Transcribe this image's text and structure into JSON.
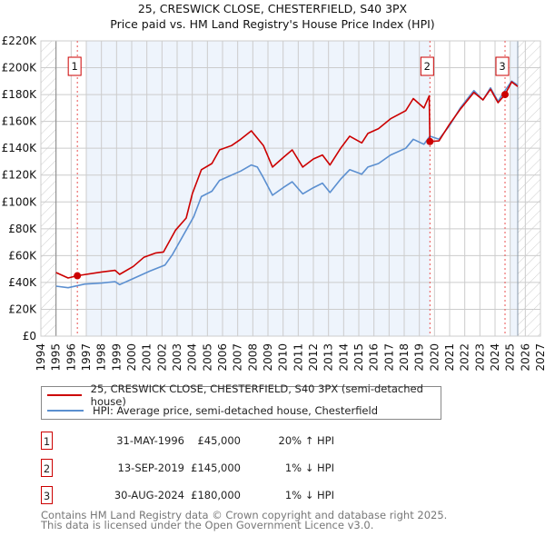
{
  "chart_data": {
    "type": "line",
    "title": "25, CRESWICK CLOSE, CHESTERFIELD, S40 3PX",
    "subtitle": "Price paid vs. HM Land Registry's House Price Index (HPI)",
    "xlim": [
      1994,
      2027
    ],
    "ylim": [
      0,
      220000
    ],
    "x_ticks": [
      "1994",
      "1995",
      "1996",
      "1997",
      "1998",
      "1999",
      "2000",
      "2001",
      "2002",
      "2003",
      "2004",
      "2005",
      "2006",
      "2007",
      "2008",
      "2009",
      "2010",
      "2011",
      "2012",
      "2013",
      "2014",
      "2015",
      "2016",
      "2017",
      "2018",
      "2019",
      "2020",
      "2021",
      "2022",
      "2023",
      "2024",
      "2025",
      "2026",
      "2027"
    ],
    "y_ticks": [
      {
        "v": 0,
        "label": "£0"
      },
      {
        "v": 20000,
        "label": "£20K"
      },
      {
        "v": 40000,
        "label": "£40K"
      },
      {
        "v": 60000,
        "label": "£60K"
      },
      {
        "v": 80000,
        "label": "£80K"
      },
      {
        "v": 100000,
        "label": "£100K"
      },
      {
        "v": 120000,
        "label": "£120K"
      },
      {
        "v": 140000,
        "label": "£140K"
      },
      {
        "v": 160000,
        "label": "£160K"
      },
      {
        "v": 180000,
        "label": "£180K"
      },
      {
        "v": 200000,
        "label": "£200K"
      },
      {
        "v": 220000,
        "label": "£220K"
      }
    ],
    "grid": true,
    "series": [
      {
        "name": "25, CRESWICK CLOSE, CHESTERFIELD, S40 3PX (semi-detached house)",
        "color": "#cc0000",
        "x": [
          1995.0,
          1995.8,
          1996.4,
          1998.0,
          1998.9,
          1999.2,
          2000.1,
          2000.8,
          2001.6,
          2002.1,
          2002.9,
          2003.6,
          2004.0,
          2004.6,
          2005.3,
          2005.8,
          2006.6,
          2007.2,
          2007.9,
          2008.7,
          2009.3,
          2010.0,
          2010.6,
          2011.3,
          2012.0,
          2012.6,
          2013.1,
          2013.8,
          2014.4,
          2015.2,
          2015.6,
          2016.3,
          2017.1,
          2018.1,
          2018.6,
          2019.3,
          2019.65,
          2019.7,
          2020.3,
          2021.0,
          2021.7,
          2022.6,
          2023.2,
          2023.7,
          2024.2,
          2024.66,
          2025.1,
          2025.5
        ],
        "y": [
          47400,
          43300,
          45000,
          47800,
          49000,
          46000,
          51900,
          58700,
          62000,
          62700,
          79000,
          88000,
          106000,
          124000,
          128600,
          138800,
          142000,
          146700,
          153000,
          142000,
          126000,
          133000,
          138800,
          126000,
          132000,
          135000,
          127500,
          140000,
          149000,
          144000,
          151000,
          154600,
          162000,
          168000,
          177000,
          170000,
          179000,
          145000,
          145500,
          158000,
          169000,
          181600,
          176000,
          184000,
          174000,
          180000,
          189500,
          186000
        ]
      },
      {
        "name": "HPI: Average price, semi-detached house, Chesterfield",
        "color": "#5b8fd0",
        "x": [
          1995.0,
          1995.8,
          1996.9,
          1998.0,
          1998.9,
          1999.2,
          2000.1,
          2001.2,
          2002.2,
          2002.7,
          2003.6,
          2004.1,
          2004.6,
          2005.3,
          2005.8,
          2006.6,
          2007.2,
          2007.9,
          2008.3,
          2008.7,
          2009.3,
          2010.0,
          2010.6,
          2011.3,
          2012.0,
          2012.6,
          2013.1,
          2013.8,
          2014.4,
          2015.2,
          2015.6,
          2016.3,
          2017.1,
          2018.1,
          2018.6,
          2019.3,
          2019.7,
          2020.3,
          2021.0,
          2021.7,
          2022.6,
          2023.2,
          2023.7,
          2024.2,
          2024.6,
          2025.1,
          2025.5
        ],
        "y": [
          37200,
          36100,
          38800,
          39500,
          40600,
          38400,
          42900,
          48500,
          53000,
          61000,
          79000,
          89000,
          104000,
          108000,
          116000,
          120000,
          123000,
          127500,
          126000,
          118000,
          105000,
          110600,
          115000,
          106000,
          110600,
          114000,
          107000,
          117000,
          124000,
          120700,
          126000,
          128600,
          135000,
          140000,
          146700,
          143000,
          149000,
          146700,
          157000,
          170000,
          183000,
          176000,
          185000,
          175000,
          182000,
          190000,
          187000
        ]
      }
    ],
    "sales": [
      {
        "id": "1",
        "x": 1996.41,
        "y": 45000
      },
      {
        "id": "2",
        "x": 2019.7,
        "y": 145000
      },
      {
        "id": "3",
        "x": 2024.66,
        "y": 180000
      }
    ],
    "data_end": 2025.5,
    "legend_placement": "below"
  },
  "legend": {
    "property": "25, CRESWICK CLOSE, CHESTERFIELD, S40 3PX (semi-detached house)",
    "hpi": "HPI: Average price, semi-detached house, Chesterfield"
  },
  "transactions": [
    {
      "num": "1",
      "date": "31-MAY-1996",
      "price": "£45,000",
      "hpi": "20% ↑ HPI"
    },
    {
      "num": "2",
      "date": "13-SEP-2019",
      "price": "£145,000",
      "hpi": "1% ↓ HPI"
    },
    {
      "num": "3",
      "date": "30-AUG-2024",
      "price": "£180,000",
      "hpi": "1% ↓ HPI"
    }
  ],
  "footer": {
    "line1": "Contains HM Land Registry data © Crown copyright and database right 2025.",
    "line2": "This data is licensed under the Open Government Licence v3.0."
  },
  "colors": {
    "property": "#cc0000",
    "hpi": "#5b8fd0",
    "band": "#eef4fc"
  }
}
